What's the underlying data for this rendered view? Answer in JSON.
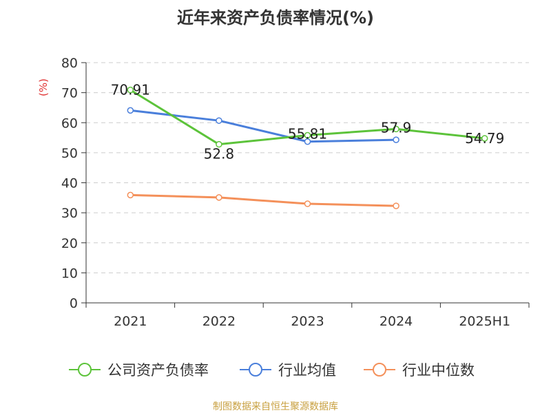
{
  "chart_data": {
    "type": "line",
    "title": "近年来资产负债率情况(%)",
    "ylabel": "(%)",
    "xlabel": "",
    "categories": [
      "2021",
      "2022",
      "2023",
      "2024",
      "2025H1"
    ],
    "ylim": [
      0,
      80
    ],
    "yticks": [
      0,
      10,
      20,
      30,
      40,
      50,
      60,
      70,
      80
    ],
    "grid": true,
    "legend_position": "bottom",
    "series": [
      {
        "name": "公司资产负债率",
        "color": "#5cc33a",
        "values": [
          70.91,
          52.8,
          55.81,
          57.9,
          54.79
        ],
        "labels": [
          "70.91",
          "52.8",
          "55.81",
          "57.9",
          "54.79"
        ]
      },
      {
        "name": "行业均值",
        "color": "#4a7fdb",
        "values": [
          64.1,
          60.7,
          53.7,
          54.3,
          null
        ],
        "labels": []
      },
      {
        "name": "行业中位数",
        "color": "#f4905a",
        "values": [
          35.9,
          35.1,
          33.0,
          32.3,
          null
        ],
        "labels": []
      }
    ],
    "source": "制图数据来自恒生聚源数据库"
  }
}
